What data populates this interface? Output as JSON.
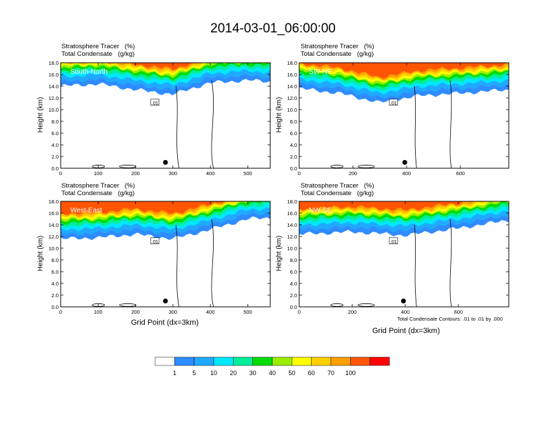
{
  "title": "2014-03-01_06:00:00",
  "subtitle_line1": "Stratosphere Tracer   (%)",
  "subtitle_line2": "Total Condensate   (g/kg)",
  "y_axis_title": "Height (km)",
  "x_axis_title": "Grid Point (dx=3km)",
  "contour_note": "Total Condensate Contours: .01 to .01 by .000",
  "contour_label": ".01",
  "chart_data": [
    {
      "type": "heatmap",
      "panel_label": "South-North",
      "x_ticks": [
        "0",
        "100",
        "200",
        "300",
        "400",
        "500"
      ],
      "x_tick_values": [
        0,
        100,
        200,
        300,
        400,
        500
      ],
      "xlim": [
        0,
        560
      ],
      "y_ticks": [
        "0.0",
        "2.0",
        "4.0",
        "6.0",
        "8.0",
        "10.0",
        "12.0",
        "14.0",
        "16.0",
        "18.0"
      ],
      "y_tick_values": [
        0,
        2,
        4,
        6,
        8,
        10,
        12,
        14,
        16,
        18
      ],
      "ylim": [
        0,
        18
      ],
      "tracer_band_base_km": [
        [
          0,
          14.0
        ],
        [
          100,
          14.4
        ],
        [
          200,
          13.4
        ],
        [
          300,
          12.6
        ],
        [
          400,
          14.6
        ],
        [
          500,
          15.0
        ],
        [
          560,
          14.8
        ]
      ],
      "marker": [
        280,
        1.0
      ]
    },
    {
      "type": "heatmap",
      "panel_label": "SW-NE",
      "x_ticks": [
        "0",
        "200",
        "400",
        "600"
      ],
      "x_tick_values": [
        0,
        200,
        400,
        600
      ],
      "xlim": [
        0,
        780
      ],
      "y_ticks": [
        "0.0",
        "2.0",
        "4.0",
        "6.0",
        "8.0",
        "10.0",
        "12.0",
        "14.0",
        "16.0",
        "18.0"
      ],
      "y_tick_values": [
        0,
        2,
        4,
        6,
        8,
        10,
        12,
        14,
        16,
        18
      ],
      "ylim": [
        0,
        18
      ],
      "tracer_band_base_km": [
        [
          0,
          13.6
        ],
        [
          150,
          12.8
        ],
        [
          300,
          11.2
        ],
        [
          450,
          12.4
        ],
        [
          600,
          12.8
        ],
        [
          780,
          13.4
        ]
      ],
      "marker": [
        393,
        1.0
      ]
    },
    {
      "type": "heatmap",
      "panel_label": "West-East",
      "x_ticks": [
        "0",
        "100",
        "200",
        "300",
        "400",
        "500"
      ],
      "x_tick_values": [
        0,
        100,
        200,
        300,
        400,
        500
      ],
      "xlim": [
        0,
        560
      ],
      "y_ticks": [
        "0.0",
        "2.0",
        "4.0",
        "6.0",
        "8.0",
        "10.0",
        "12.0",
        "14.0",
        "16.0",
        "18.0"
      ],
      "y_tick_values": [
        0,
        2,
        4,
        6,
        8,
        10,
        12,
        14,
        16,
        18
      ],
      "ylim": [
        0,
        18
      ],
      "tracer_band_base_km": [
        [
          0,
          11.6
        ],
        [
          100,
          11.8
        ],
        [
          200,
          12.4
        ],
        [
          300,
          11.6
        ],
        [
          400,
          13.2
        ],
        [
          500,
          15.0
        ],
        [
          560,
          15.2
        ]
      ],
      "marker": [
        280,
        1.0
      ]
    },
    {
      "type": "heatmap",
      "panel_label": "NW-SE",
      "x_ticks": [
        "0",
        "200",
        "400",
        "600"
      ],
      "x_tick_values": [
        0,
        200,
        400,
        600
      ],
      "xlim": [
        0,
        790
      ],
      "y_ticks": [
        "0.0",
        "2.0",
        "4.0",
        "6.0",
        "8.0",
        "10.0",
        "12.0",
        "14.0",
        "16.0",
        "18.0"
      ],
      "y_tick_values": [
        0,
        2,
        4,
        6,
        8,
        10,
        12,
        14,
        16,
        18
      ],
      "ylim": [
        0,
        18
      ],
      "tracer_band_base_km": [
        [
          0,
          12.4
        ],
        [
          200,
          12.8
        ],
        [
          400,
          12.2
        ],
        [
          600,
          13.4
        ],
        [
          790,
          14.8
        ]
      ],
      "marker": [
        393,
        1.0
      ]
    }
  ],
  "colorbar": {
    "labels": [
      "1",
      "5",
      "10",
      "20",
      "30",
      "40",
      "50",
      "60",
      "70",
      "100"
    ],
    "colors": [
      "#ffffff",
      "#2f8cff",
      "#20aaff",
      "#00e8ff",
      "#00ee99",
      "#00dd00",
      "#99ee00",
      "#ffff00",
      "#ffd000",
      "#ffa000",
      "#ff5500",
      "#ff0000"
    ]
  }
}
